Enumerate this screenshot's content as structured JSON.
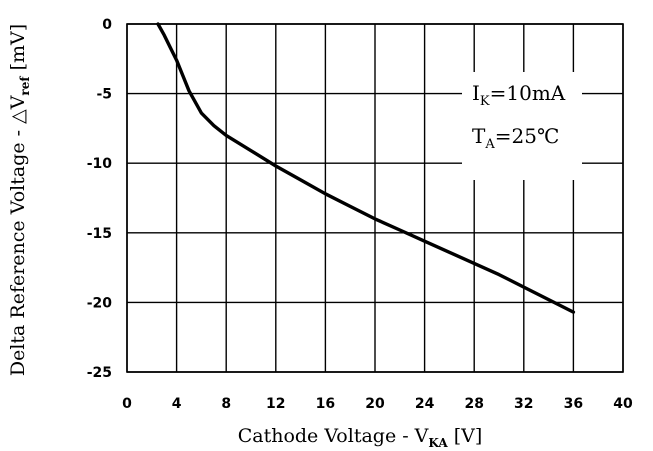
{
  "chart_data": {
    "type": "line",
    "xlabel_prefix": "Cathode Voltage - V",
    "xlabel_sub": "KA",
    "xlabel_suffix": " [V]",
    "ylabel_prefix": "Delta Reference Voltage -  △V",
    "ylabel_sub": "ref",
    "ylabel_suffix": " [mV]",
    "xlim": [
      0,
      40
    ],
    "ylim": [
      -25,
      0
    ],
    "x_ticks": [
      "0",
      "4",
      "8",
      "12",
      "16",
      "20",
      "24",
      "28",
      "32",
      "36",
      "40"
    ],
    "y_ticks": [
      "0",
      "-5",
      "-10",
      "-15",
      "-20",
      "-25"
    ],
    "grid": true,
    "annotations": [
      {
        "main": "I",
        "sub": "K",
        "rest": "=10mA"
      },
      {
        "main": "T",
        "sub": "A",
        "rest": "=25℃"
      }
    ],
    "series": [
      {
        "x": [
          2.5,
          3.0,
          3.5,
          4.0,
          4.5,
          5.0,
          6.0,
          7.0,
          8.0,
          10.0,
          12.0,
          14.0,
          16.0,
          18.0,
          20.0,
          22.0,
          24.0,
          26.0,
          28.0,
          30.0,
          32.0,
          34.0,
          36.0
        ],
        "y": [
          0.0,
          -0.8,
          -1.7,
          -2.6,
          -3.7,
          -4.8,
          -6.4,
          -7.3,
          -8.0,
          -9.1,
          -10.2,
          -11.2,
          -12.2,
          -13.1,
          -14.0,
          -14.8,
          -15.6,
          -16.4,
          -17.2,
          -18.0,
          -18.9,
          -19.8,
          -20.7
        ]
      }
    ]
  }
}
